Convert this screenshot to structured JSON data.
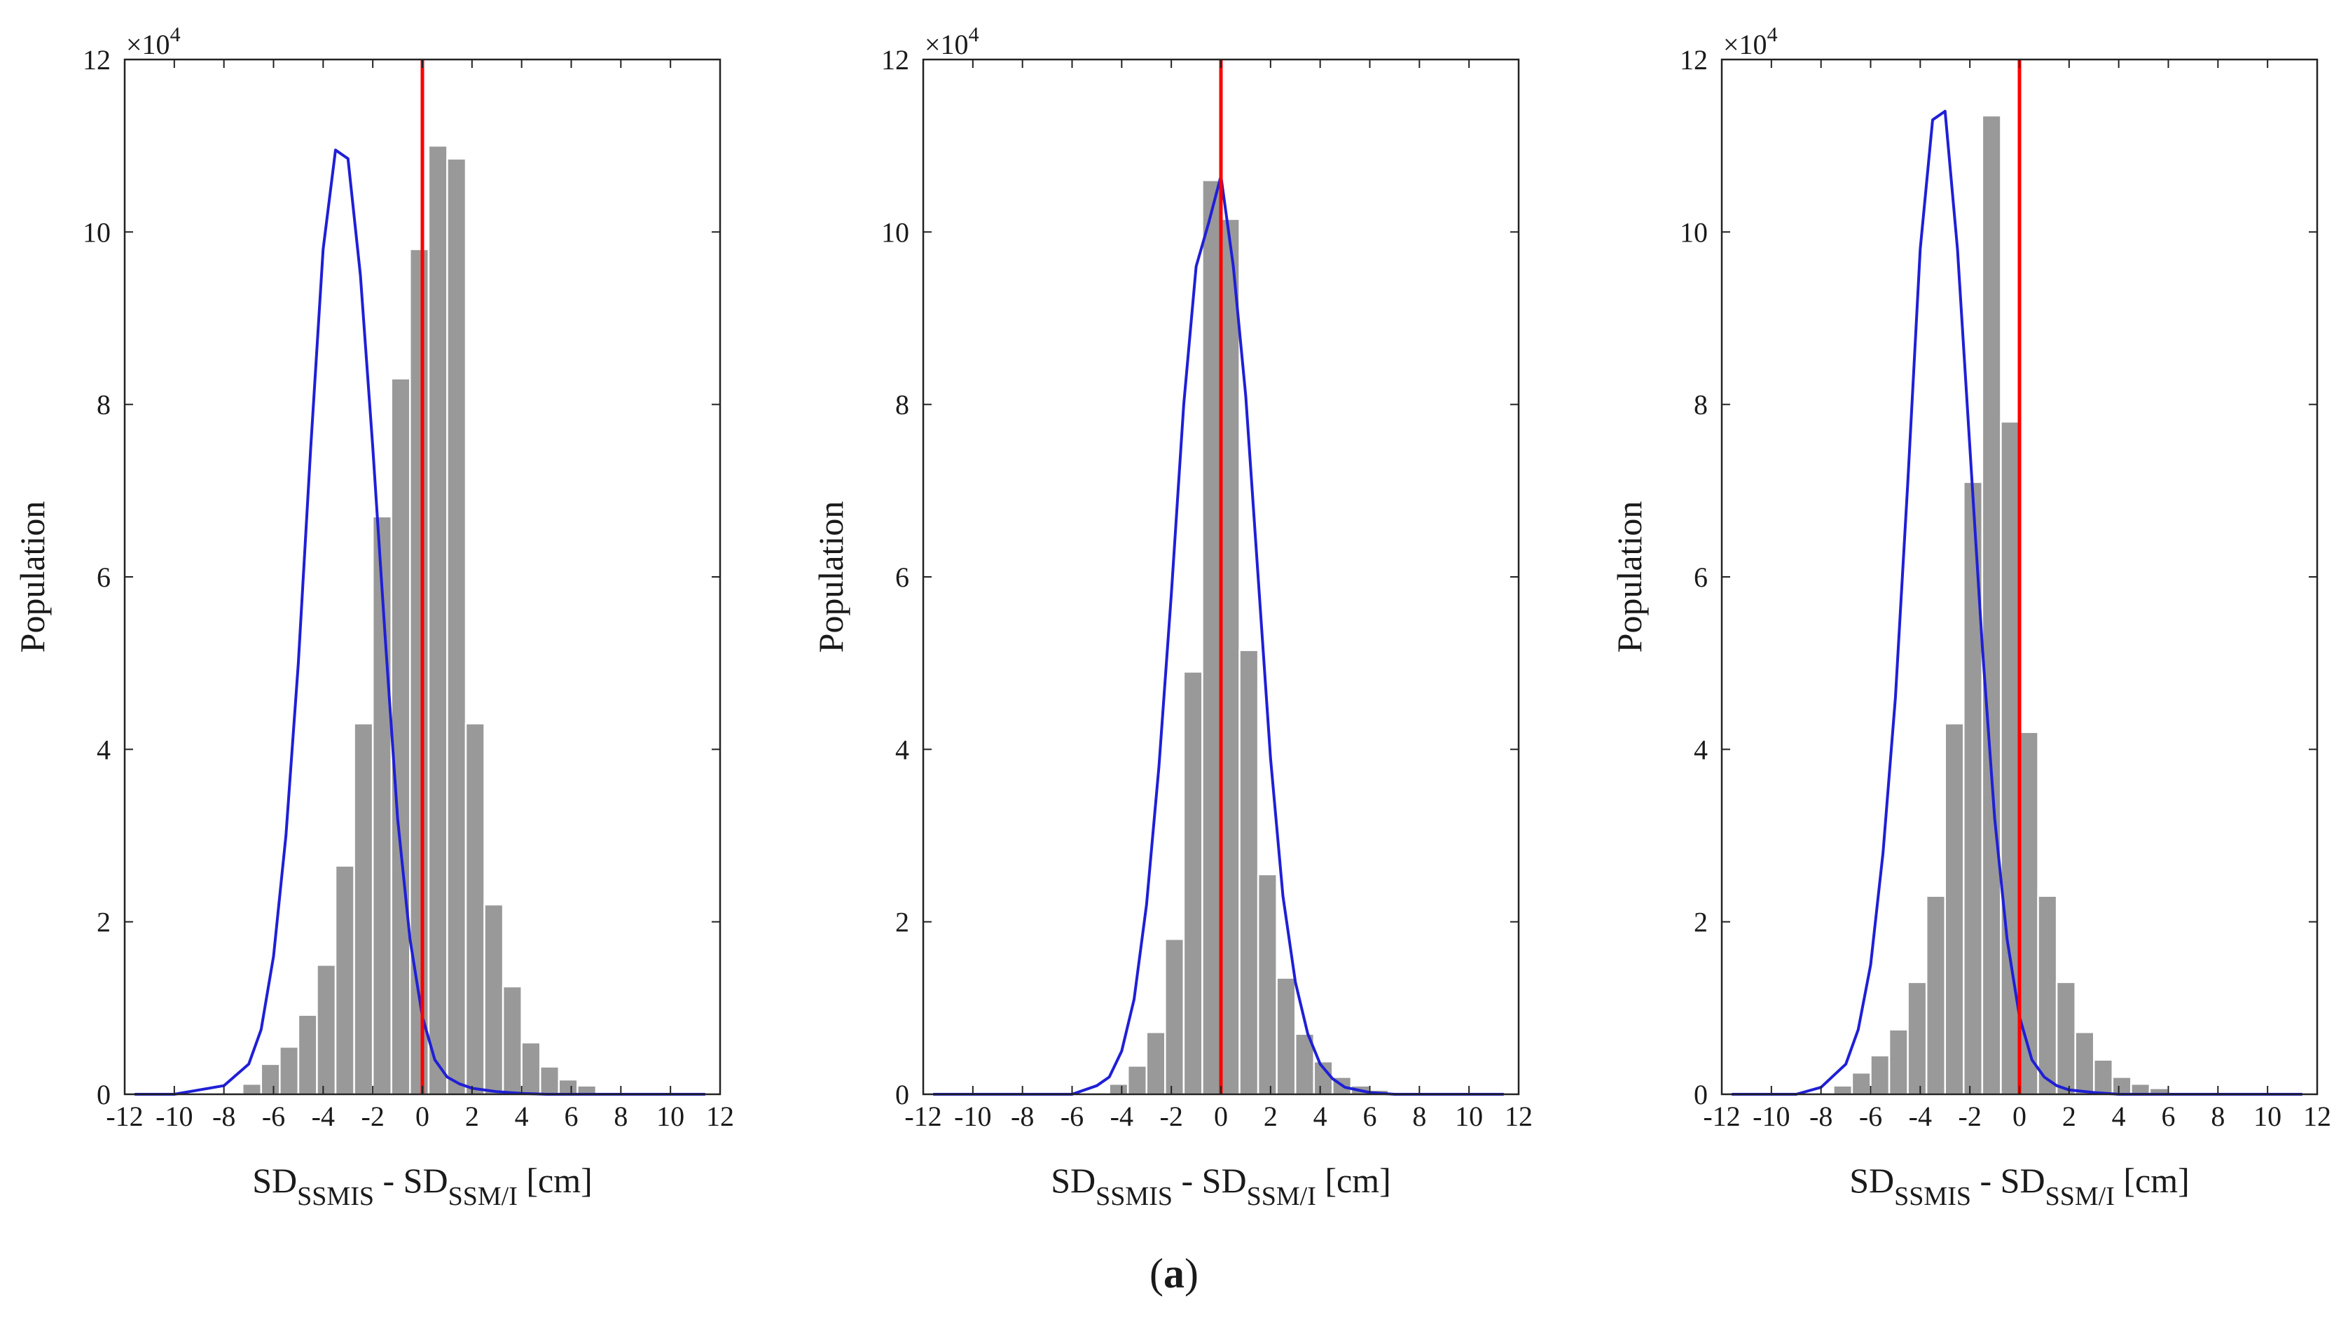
{
  "caption": {
    "open": "(",
    "letter": "a",
    "close": ")"
  },
  "chart_data": [
    {
      "type": "bar",
      "panel": "left",
      "ylabel": "Population",
      "xlabel": {
        "main1": "SD",
        "sub1": "SSMIS",
        "mid": " - SD",
        "sub2": "SSM/I",
        "unit": " [cm]"
      },
      "y_multiplier": "×10",
      "y_multiplier_exp": "4",
      "xlim": [
        -12,
        12
      ],
      "ylim": [
        0,
        12
      ],
      "xticks": [
        -12,
        -10,
        -8,
        -6,
        -4,
        -2,
        0,
        2,
        4,
        6,
        8,
        10,
        12
      ],
      "yticks": [
        0,
        2,
        4,
        6,
        8,
        10,
        12
      ],
      "bin_width": 0.75,
      "bins": [
        {
          "x0": -7.25,
          "value": 0.12
        },
        {
          "x0": -6.5,
          "value": 0.35
        },
        {
          "x0": -5.75,
          "value": 0.55
        },
        {
          "x0": -5.0,
          "value": 0.92
        },
        {
          "x0": -4.25,
          "value": 1.5
        },
        {
          "x0": -3.5,
          "value": 2.65
        },
        {
          "x0": -2.75,
          "value": 4.3
        },
        {
          "x0": -2.0,
          "value": 6.7
        },
        {
          "x0": -1.25,
          "value": 8.3
        },
        {
          "x0": -0.5,
          "value": 9.8
        },
        {
          "x0": 0.25,
          "value": 11.0
        },
        {
          "x0": 1.0,
          "value": 10.85
        },
        {
          "x0": 1.75,
          "value": 4.3
        },
        {
          "x0": 2.5,
          "value": 2.2
        },
        {
          "x0": 3.25,
          "value": 1.25
        },
        {
          "x0": 4.0,
          "value": 0.6
        },
        {
          "x0": 4.75,
          "value": 0.32
        },
        {
          "x0": 5.5,
          "value": 0.17
        },
        {
          "x0": 6.25,
          "value": 0.1
        }
      ],
      "fit_line": {
        "color": "#1f1fd6",
        "x": [
          -11.6,
          -10,
          -9,
          -8,
          -7,
          -6.5,
          -6,
          -5.5,
          -5,
          -4.5,
          -4,
          -3.5,
          -3,
          -2.5,
          -2,
          -1.5,
          -1,
          -0.5,
          0,
          0.5,
          1,
          1.5,
          2,
          3,
          4,
          5,
          6,
          8,
          11.4
        ],
        "y": [
          0,
          0,
          0.05,
          0.1,
          0.35,
          0.75,
          1.6,
          3.0,
          5.0,
          7.5,
          9.8,
          10.95,
          10.85,
          9.5,
          7.5,
          5.3,
          3.2,
          1.8,
          0.9,
          0.4,
          0.2,
          0.12,
          0.07,
          0.03,
          0.01,
          0,
          0,
          0,
          0
        ]
      },
      "reference_line": {
        "x": 0,
        "color": "#ff0000"
      }
    },
    {
      "type": "bar",
      "panel": "middle",
      "ylabel": "Population",
      "xlabel": {
        "main1": "SD",
        "sub1": "SSMIS",
        "mid": " - SD",
        "sub2": "SSM/I",
        "unit": " [cm]"
      },
      "y_multiplier": "×10",
      "y_multiplier_exp": "4",
      "xlim": [
        -12,
        12
      ],
      "ylim": [
        0,
        12
      ],
      "xticks": [
        -12,
        -10,
        -8,
        -6,
        -4,
        -2,
        0,
        2,
        4,
        6,
        8,
        10,
        12
      ],
      "yticks": [
        0,
        2,
        4,
        6,
        8,
        10,
        12
      ],
      "bin_width": 0.75,
      "bins": [
        {
          "x0": -4.5,
          "value": 0.12
        },
        {
          "x0": -3.75,
          "value": 0.33
        },
        {
          "x0": -3.0,
          "value": 0.72
        },
        {
          "x0": -2.25,
          "value": 1.8
        },
        {
          "x0": -1.5,
          "value": 4.9
        },
        {
          "x0": -0.75,
          "value": 10.6
        },
        {
          "x0": 0.0,
          "value": 10.15
        },
        {
          "x0": 0.75,
          "value": 5.15
        },
        {
          "x0": 1.5,
          "value": 2.55
        },
        {
          "x0": 2.25,
          "value": 1.35
        },
        {
          "x0": 3.0,
          "value": 0.7
        },
        {
          "x0": 3.75,
          "value": 0.38
        },
        {
          "x0": 4.5,
          "value": 0.2
        },
        {
          "x0": 5.25,
          "value": 0.1
        },
        {
          "x0": 6.0,
          "value": 0.05
        }
      ],
      "fit_line": {
        "color": "#1f1fd6",
        "x": [
          -11.6,
          -6,
          -5,
          -4.5,
          -4,
          -3.5,
          -3,
          -2.5,
          -2,
          -1.5,
          -1,
          -0.5,
          0,
          0.5,
          1,
          1.5,
          2,
          2.5,
          3,
          3.5,
          4,
          4.5,
          5,
          6,
          7,
          8,
          11.4
        ],
        "y": [
          0,
          0,
          0.1,
          0.2,
          0.5,
          1.1,
          2.2,
          3.8,
          5.8,
          8.0,
          9.6,
          10.1,
          10.65,
          9.6,
          8.1,
          6.0,
          3.9,
          2.3,
          1.3,
          0.7,
          0.35,
          0.18,
          0.08,
          0.02,
          0,
          0,
          0
        ]
      },
      "reference_line": {
        "x": 0,
        "color": "#ff0000"
      }
    },
    {
      "type": "bar",
      "panel": "right",
      "ylabel": "Population",
      "xlabel": {
        "main1": "SD",
        "sub1": "SSMIS",
        "mid": " - SD",
        "sub2": "SSM/I",
        "unit": " [cm]"
      },
      "y_multiplier": "×10",
      "y_multiplier_exp": "4",
      "xlim": [
        -12,
        12
      ],
      "ylim": [
        0,
        12
      ],
      "xticks": [
        -12,
        -10,
        -8,
        -6,
        -4,
        -2,
        0,
        2,
        4,
        6,
        8,
        10,
        12
      ],
      "yticks": [
        0,
        2,
        4,
        6,
        8,
        10,
        12
      ],
      "bin_width": 0.75,
      "bins": [
        {
          "x0": -7.5,
          "value": 0.1
        },
        {
          "x0": -6.75,
          "value": 0.25
        },
        {
          "x0": -6.0,
          "value": 0.45
        },
        {
          "x0": -5.25,
          "value": 0.75
        },
        {
          "x0": -4.5,
          "value": 1.3
        },
        {
          "x0": -3.75,
          "value": 2.3
        },
        {
          "x0": -3.0,
          "value": 4.3
        },
        {
          "x0": -2.25,
          "value": 7.1
        },
        {
          "x0": -1.5,
          "value": 11.35
        },
        {
          "x0": -0.75,
          "value": 7.8
        },
        {
          "x0": 0.0,
          "value": 4.2
        },
        {
          "x0": 0.75,
          "value": 2.3
        },
        {
          "x0": 1.5,
          "value": 1.3
        },
        {
          "x0": 2.25,
          "value": 0.72
        },
        {
          "x0": 3.0,
          "value": 0.4
        },
        {
          "x0": 3.75,
          "value": 0.2
        },
        {
          "x0": 4.5,
          "value": 0.12
        },
        {
          "x0": 5.25,
          "value": 0.07
        }
      ],
      "fit_line": {
        "color": "#1f1fd6",
        "x": [
          -11.6,
          -9,
          -8,
          -7,
          -6.5,
          -6,
          -5.5,
          -5,
          -4.5,
          -4,
          -3.5,
          -3,
          -2.5,
          -2,
          -1.5,
          -1,
          -0.5,
          0,
          0.5,
          1,
          1.5,
          2,
          3,
          4,
          6,
          11.4
        ],
        "y": [
          0,
          0,
          0.08,
          0.35,
          0.75,
          1.5,
          2.8,
          4.6,
          7.1,
          9.8,
          11.3,
          11.4,
          9.8,
          7.5,
          5.2,
          3.2,
          1.8,
          0.9,
          0.4,
          0.2,
          0.1,
          0.05,
          0.02,
          0,
          0,
          0
        ]
      },
      "reference_line": {
        "x": 0,
        "color": "#ff0000"
      }
    }
  ]
}
